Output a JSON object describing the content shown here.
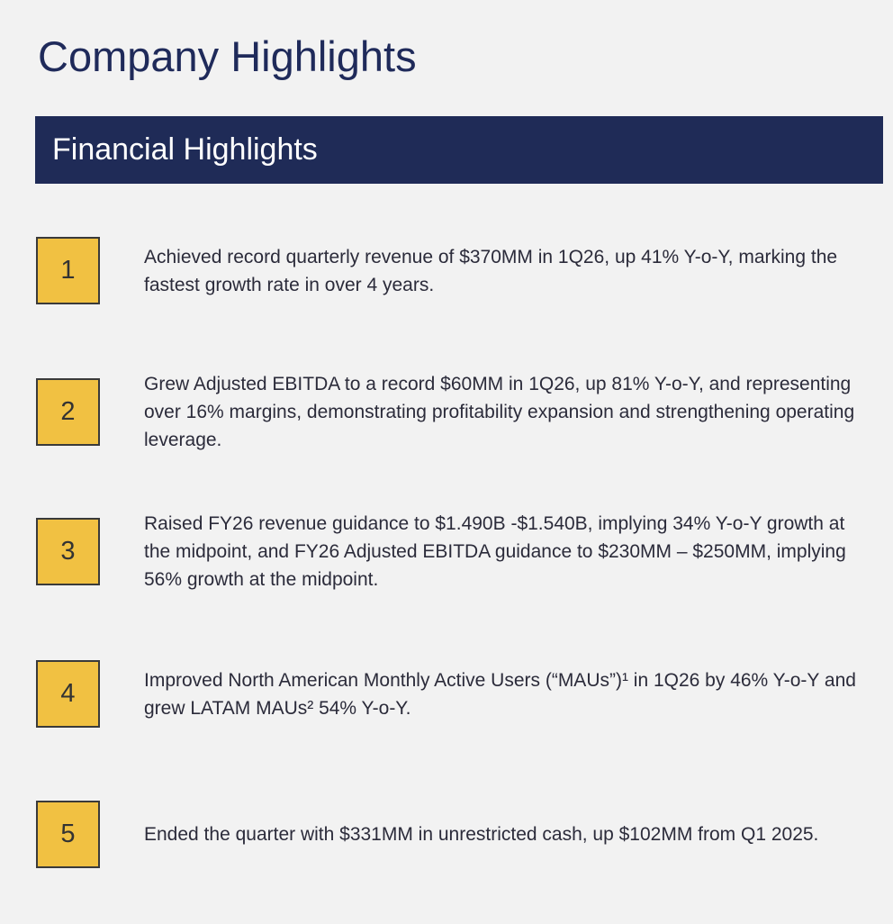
{
  "header": {
    "title": "Company Highlights"
  },
  "section": {
    "title": "Financial Highlights"
  },
  "items": [
    {
      "number": "1",
      "text": "Achieved record quarterly revenue of $370MM in 1Q26, up 41% Y-o-Y, marking the fastest growth rate in over 4 years."
    },
    {
      "number": "2",
      "text": "Grew Adjusted EBITDA to a record $60MM in 1Q26, up 81% Y-o-Y, and representing over 16% margins, demonstrating profitability expansion and strengthening operating leverage."
    },
    {
      "number": "3",
      "text": "Raised FY26 revenue guidance to $1.490B -$1.540B, implying 34% Y-o-Y growth at the midpoint, and FY26 Adjusted EBITDA guidance to $230MM – $250MM, implying 56% growth at the midpoint."
    },
    {
      "number": "4",
      "text": "Improved North American Monthly Active Users (“MAUs”)¹ in 1Q26 by 46% Y-o-Y and grew LATAM MAUs² 54% Y-o-Y."
    },
    {
      "number": "5",
      "text": "Ended the quarter with $331MM in unrestricted cash, up $102MM from Q1 2025."
    }
  ]
}
